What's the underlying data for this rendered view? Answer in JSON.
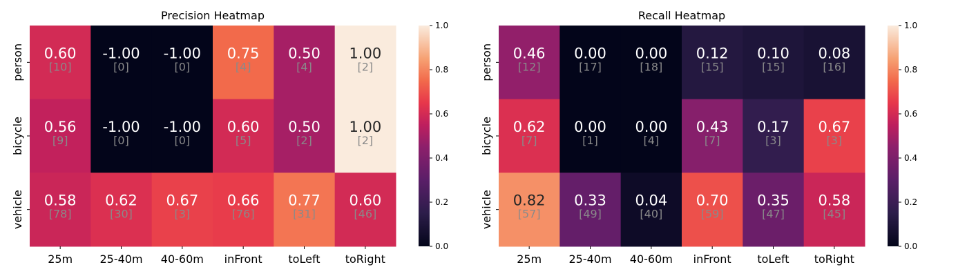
{
  "chart_data": [
    {
      "type": "heatmap",
      "title": "Precision Heatmap",
      "x_categories": [
        "25m",
        "25-40m",
        "40-60m",
        "inFront",
        "toLeft",
        "toRight"
      ],
      "y_categories": [
        "person",
        "bicycle",
        "vehicle"
      ],
      "values": [
        [
          "0.60",
          "-1.00",
          "-1.00",
          "0.75",
          "0.50",
          "1.00"
        ],
        [
          "0.56",
          "-1.00",
          "-1.00",
          "0.60",
          "0.50",
          "1.00"
        ],
        [
          "0.58",
          "0.62",
          "0.67",
          "0.66",
          "0.77",
          "0.60"
        ]
      ],
      "counts": [
        [
          "[10]",
          "[0]",
          "[0]",
          "[4]",
          "[4]",
          "[2]"
        ],
        [
          "[9]",
          "[0]",
          "[0]",
          "[5]",
          "[2]",
          "[2]"
        ],
        [
          "[78]",
          "[30]",
          "[3]",
          "[76]",
          "[31]",
          "[46]"
        ]
      ],
      "colorbar": {
        "range": [
          0,
          1
        ],
        "ticks": [
          "0.0",
          "0.2",
          "0.4",
          "0.6",
          "0.8",
          "1.0"
        ]
      }
    },
    {
      "type": "heatmap",
      "title": "Recall Heatmap",
      "x_categories": [
        "25m",
        "25-40m",
        "40-60m",
        "inFront",
        "toLeft",
        "toRight"
      ],
      "y_categories": [
        "person",
        "bicycle",
        "vehicle"
      ],
      "values": [
        [
          "0.46",
          "0.00",
          "0.00",
          "0.12",
          "0.10",
          "0.08"
        ],
        [
          "0.62",
          "0.00",
          "0.00",
          "0.43",
          "0.17",
          "0.67"
        ],
        [
          "0.82",
          "0.33",
          "0.04",
          "0.70",
          "0.35",
          "0.58"
        ]
      ],
      "counts": [
        [
          "[12]",
          "[17]",
          "[18]",
          "[15]",
          "[15]",
          "[16]"
        ],
        [
          "[7]",
          "[1]",
          "[4]",
          "[7]",
          "[3]",
          "[3]"
        ],
        [
          "[57]",
          "[49]",
          "[40]",
          "[59]",
          "[47]",
          "[45]"
        ]
      ],
      "colorbar": {
        "range": [
          0,
          1
        ],
        "ticks": [
          "0.0",
          "0.2",
          "0.4",
          "0.6",
          "0.8",
          "1.0"
        ]
      }
    }
  ]
}
